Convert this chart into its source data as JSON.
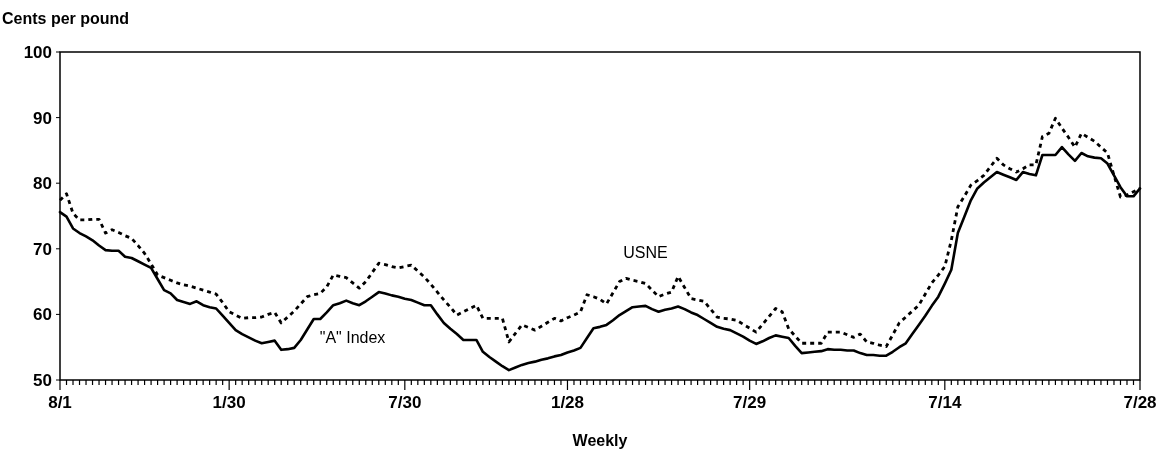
{
  "chart_data": {
    "type": "line",
    "ylabel": "Cents per pound",
    "xlabel": "Weekly",
    "categories": [
      "8/1",
      null,
      null,
      null,
      null,
      null,
      null,
      null,
      null,
      null,
      null,
      null,
      null,
      null,
      null,
      null,
      null,
      null,
      null,
      null,
      null,
      null,
      null,
      null,
      null,
      null,
      "1/30",
      null,
      null,
      null,
      null,
      null,
      null,
      null,
      null,
      null,
      null,
      null,
      null,
      null,
      null,
      null,
      null,
      null,
      null,
      null,
      null,
      null,
      null,
      null,
      null,
      null,
      null,
      "7/30",
      null,
      null,
      null,
      null,
      null,
      null,
      null,
      null,
      null,
      null,
      null,
      null,
      null,
      null,
      null,
      null,
      null,
      null,
      null,
      null,
      null,
      null,
      null,
      null,
      "1/28",
      null,
      null,
      null,
      null,
      null,
      null,
      null,
      null,
      null,
      null,
      null,
      null,
      null,
      null,
      null,
      null,
      null,
      null,
      null,
      null,
      null,
      null,
      null,
      null,
      null,
      null,
      null,
      "7/29",
      null,
      null,
      null,
      null,
      null,
      null,
      null,
      null,
      null,
      null,
      null,
      null,
      null,
      null,
      null,
      null,
      null,
      null,
      null,
      null,
      null,
      null,
      null,
      null,
      null,
      null,
      null,
      null,
      null,
      "7/14",
      null,
      null,
      null,
      null,
      null,
      null,
      null,
      null,
      null,
      null,
      null,
      null,
      null,
      null,
      null,
      null,
      null,
      null,
      null,
      null,
      null,
      null,
      null,
      null,
      null,
      null,
      null,
      null,
      null,
      "7/28"
    ],
    "ylim": [
      50,
      100
    ],
    "yticks": [
      50,
      60,
      70,
      80,
      90,
      100
    ],
    "grid": false,
    "legend": false,
    "marker": "none",
    "series": [
      {
        "name": "USNE",
        "color": "#000000",
        "line_style": "dotted",
        "values": [
          77.4,
          78.4,
          75.4,
          74.4,
          74.4,
          74.5,
          74.5,
          72.4,
          72.9,
          72.5,
          72.0,
          71.6,
          70.5,
          69.3,
          67.7,
          66.0,
          65.6,
          65.2,
          64.8,
          64.5,
          64.3,
          64.0,
          63.7,
          63.4,
          63.1,
          61.8,
          60.4,
          59.9,
          59.4,
          59.5,
          59.5,
          59.6,
          60.0,
          60.3,
          58.7,
          59.6,
          60.5,
          61.6,
          62.7,
          63.0,
          63.2,
          64.2,
          66.0,
          65.8,
          65.6,
          64.8,
          64.0,
          65.0,
          66.4,
          67.8,
          67.6,
          67.3,
          67.1,
          67.3,
          67.5,
          66.6,
          65.7,
          64.6,
          63.4,
          62.2,
          61.1,
          59.9,
          60.4,
          60.9,
          61.4,
          59.4,
          59.4,
          59.4,
          59.4,
          55.8,
          57.1,
          58.4,
          58.0,
          57.6,
          58.2,
          58.8,
          59.4,
          59.0,
          59.5,
          59.9,
          60.4,
          63.0,
          62.7,
          62.3,
          61.6,
          63.3,
          65.0,
          65.5,
          65.2,
          65.0,
          64.7,
          63.7,
          62.7,
          63.1,
          63.4,
          65.8,
          64.1,
          62.4,
          62.2,
          62.0,
          60.8,
          59.6,
          59.4,
          59.3,
          59.1,
          58.5,
          57.9,
          57.3,
          58.5,
          59.7,
          60.9,
          60.4,
          57.8,
          56.7,
          55.6,
          55.6,
          55.6,
          55.6,
          57.3,
          57.3,
          57.3,
          56.9,
          56.5,
          57.0,
          55.8,
          55.6,
          55.3,
          55.1,
          56.9,
          58.7,
          59.6,
          60.5,
          61.4,
          63.1,
          64.8,
          66.0,
          67.3,
          71.3,
          76.4,
          78.0,
          79.7,
          80.4,
          81.2,
          82.5,
          83.8,
          82.8,
          82.2,
          81.7,
          82.2,
          82.8,
          82.8,
          87.1,
          87.6,
          89.9,
          88.4,
          87.0,
          85.5,
          87.6,
          87.0,
          86.4,
          85.5,
          84.6,
          81.2,
          77.9,
          78.2,
          78.7,
          79.2
        ]
      },
      {
        "name": "\"A\" Index",
        "color": "#000000",
        "line_style": "solid",
        "values": [
          75.6,
          74.9,
          73.1,
          72.4,
          71.9,
          71.3,
          70.5,
          69.8,
          69.7,
          69.7,
          68.8,
          68.6,
          68.1,
          67.6,
          67.1,
          65.4,
          63.7,
          63.2,
          62.2,
          61.9,
          61.6,
          62.0,
          61.4,
          61.1,
          60.9,
          59.8,
          58.7,
          57.6,
          57.0,
          56.5,
          56.0,
          55.6,
          55.8,
          56.0,
          54.6,
          54.7,
          54.9,
          56.1,
          57.7,
          59.3,
          59.3,
          60.3,
          61.4,
          61.7,
          62.1,
          61.7,
          61.4,
          62.0,
          62.7,
          63.4,
          63.2,
          62.9,
          62.7,
          62.4,
          62.2,
          61.8,
          61.4,
          61.4,
          60.0,
          58.7,
          57.8,
          57.0,
          56.1,
          56.1,
          56.1,
          54.3,
          53.5,
          52.8,
          52.1,
          51.5,
          51.9,
          52.3,
          52.6,
          52.8,
          53.1,
          53.3,
          53.6,
          53.8,
          54.2,
          54.5,
          54.9,
          56.4,
          57.9,
          58.1,
          58.4,
          59.1,
          59.9,
          60.5,
          61.1,
          61.2,
          61.3,
          60.8,
          60.4,
          60.7,
          60.9,
          61.2,
          60.8,
          60.3,
          59.9,
          59.3,
          58.7,
          58.1,
          57.8,
          57.6,
          57.1,
          56.6,
          56.0,
          55.5,
          55.9,
          56.4,
          56.8,
          56.6,
          56.4,
          55.2,
          54.1,
          54.2,
          54.3,
          54.4,
          54.7,
          54.6,
          54.6,
          54.5,
          54.5,
          54.1,
          53.8,
          53.8,
          53.7,
          53.7,
          54.3,
          55.0,
          55.6,
          57.0,
          58.4,
          59.8,
          61.3,
          62.7,
          64.7,
          66.8,
          72.4,
          74.9,
          77.4,
          79.2,
          80.1,
          80.9,
          81.7,
          81.3,
          80.9,
          80.5,
          81.7,
          81.4,
          81.2,
          84.3,
          84.3,
          84.3,
          85.5,
          84.4,
          83.4,
          84.6,
          84.1,
          83.9,
          83.8,
          83.0,
          81.2,
          79.4,
          78.0,
          78.0,
          79.2
        ]
      }
    ]
  }
}
